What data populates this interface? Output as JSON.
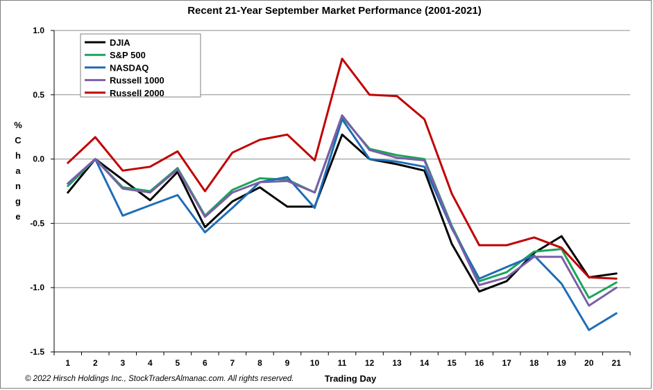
{
  "chart_data": {
    "type": "line",
    "title": "Recent 21-Year September Market Performance (2001-2021)",
    "xlabel": "Trading Day",
    "ylabel": "% Change",
    "ylim": [
      -1.5,
      1.0
    ],
    "yticks": [
      "1.0",
      "0.5",
      "0.0",
      "-0.5",
      "-1.0",
      "-1.5"
    ],
    "x": [
      1,
      2,
      3,
      4,
      5,
      6,
      7,
      8,
      9,
      10,
      11,
      12,
      13,
      14,
      15,
      16,
      17,
      18,
      19,
      20,
      21
    ],
    "grid": true,
    "legend_position": "top-left",
    "series": [
      {
        "name": "DJIA",
        "color": "#000000",
        "values": [
          -0.26,
          0.0,
          -0.16,
          -0.32,
          -0.1,
          -0.53,
          -0.33,
          -0.22,
          -0.37,
          -0.37,
          0.19,
          0.0,
          -0.04,
          -0.09,
          -0.66,
          -1.03,
          -0.95,
          -0.73,
          -0.6,
          -0.92,
          -0.89
        ]
      },
      {
        "name": "S&P 500",
        "color": "#1aa55a",
        "values": [
          -0.21,
          0.0,
          -0.22,
          -0.25,
          -0.07,
          -0.44,
          -0.24,
          -0.15,
          -0.16,
          -0.26,
          0.33,
          0.08,
          0.03,
          0.0,
          -0.52,
          -0.95,
          -0.88,
          -0.72,
          -0.7,
          -1.08,
          -0.96
        ]
      },
      {
        "name": "NASDAQ",
        "color": "#1f6db5",
        "values": [
          -0.19,
          0.0,
          -0.44,
          -0.36,
          -0.28,
          -0.57,
          -0.38,
          -0.18,
          -0.14,
          -0.38,
          0.31,
          0.0,
          -0.02,
          -0.06,
          -0.54,
          -0.93,
          -0.84,
          -0.75,
          -0.97,
          -1.33,
          -1.2
        ]
      },
      {
        "name": "Russell 1000",
        "color": "#7b5ea7",
        "values": [
          -0.19,
          0.0,
          -0.23,
          -0.26,
          -0.08,
          -0.45,
          -0.26,
          -0.18,
          -0.17,
          -0.26,
          0.34,
          0.07,
          0.01,
          -0.01,
          -0.53,
          -0.98,
          -0.92,
          -0.76,
          -0.76,
          -1.14,
          -1.0
        ]
      },
      {
        "name": "Russell 2000",
        "color": "#c00000",
        "values": [
          -0.03,
          0.17,
          -0.09,
          -0.06,
          0.06,
          -0.25,
          0.05,
          0.15,
          0.19,
          -0.01,
          0.78,
          0.5,
          0.49,
          0.31,
          -0.27,
          -0.67,
          -0.67,
          -0.61,
          -0.69,
          -0.92,
          -0.93
        ]
      }
    ]
  },
  "copyright": "© 2022 Hirsch  Holdings Inc., StockTradersAlmanac.com.  All rights reserved."
}
